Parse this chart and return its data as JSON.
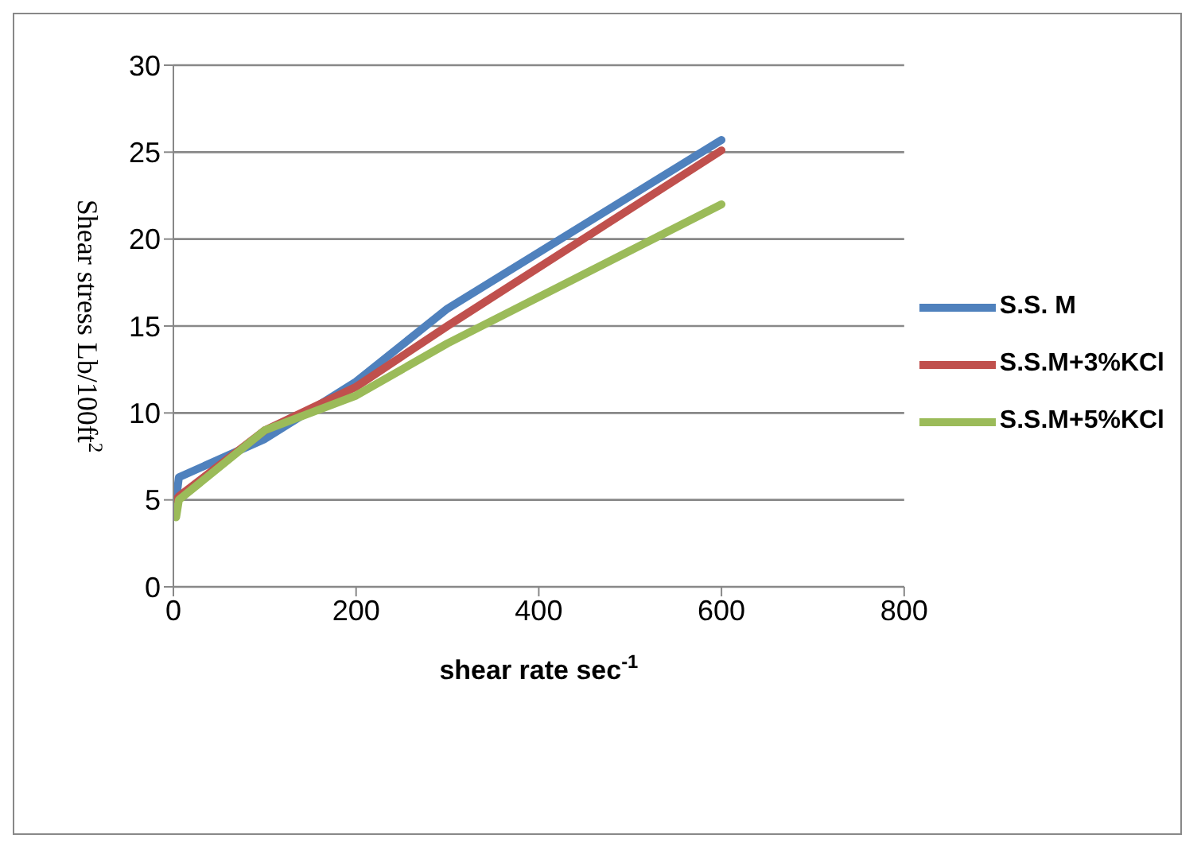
{
  "chart_data": {
    "type": "line",
    "xlabel": "shear rate sec$^{-1}$",
    "ylabel": "Shear stress Lb/100ft$^{2}$",
    "x": [
      3,
      6,
      100,
      200,
      300,
      600
    ],
    "series": [
      {
        "name": "S.S. M",
        "color": "#4f81bd",
        "values": [
          5,
          6.3,
          8.5,
          11.8,
          16,
          25.7
        ]
      },
      {
        "name": "S.S.M+3%KCl",
        "color": "#c0504d",
        "values": [
          5,
          5.2,
          9,
          11.5,
          15,
          25.1
        ]
      },
      {
        "name": "S.S.M+5%KCl",
        "color": "#9bbb59",
        "values": [
          4,
          5,
          9,
          11,
          14,
          22
        ]
      }
    ],
    "xlim": [
      0,
      800
    ],
    "xticks": [
      0,
      200,
      400,
      600,
      800
    ],
    "ylim": [
      0,
      30
    ],
    "yticks": [
      0,
      5,
      10,
      15,
      20,
      25,
      30
    ],
    "grid": "y",
    "legend": "right",
    "marker": "none",
    "line_style": "solid"
  }
}
